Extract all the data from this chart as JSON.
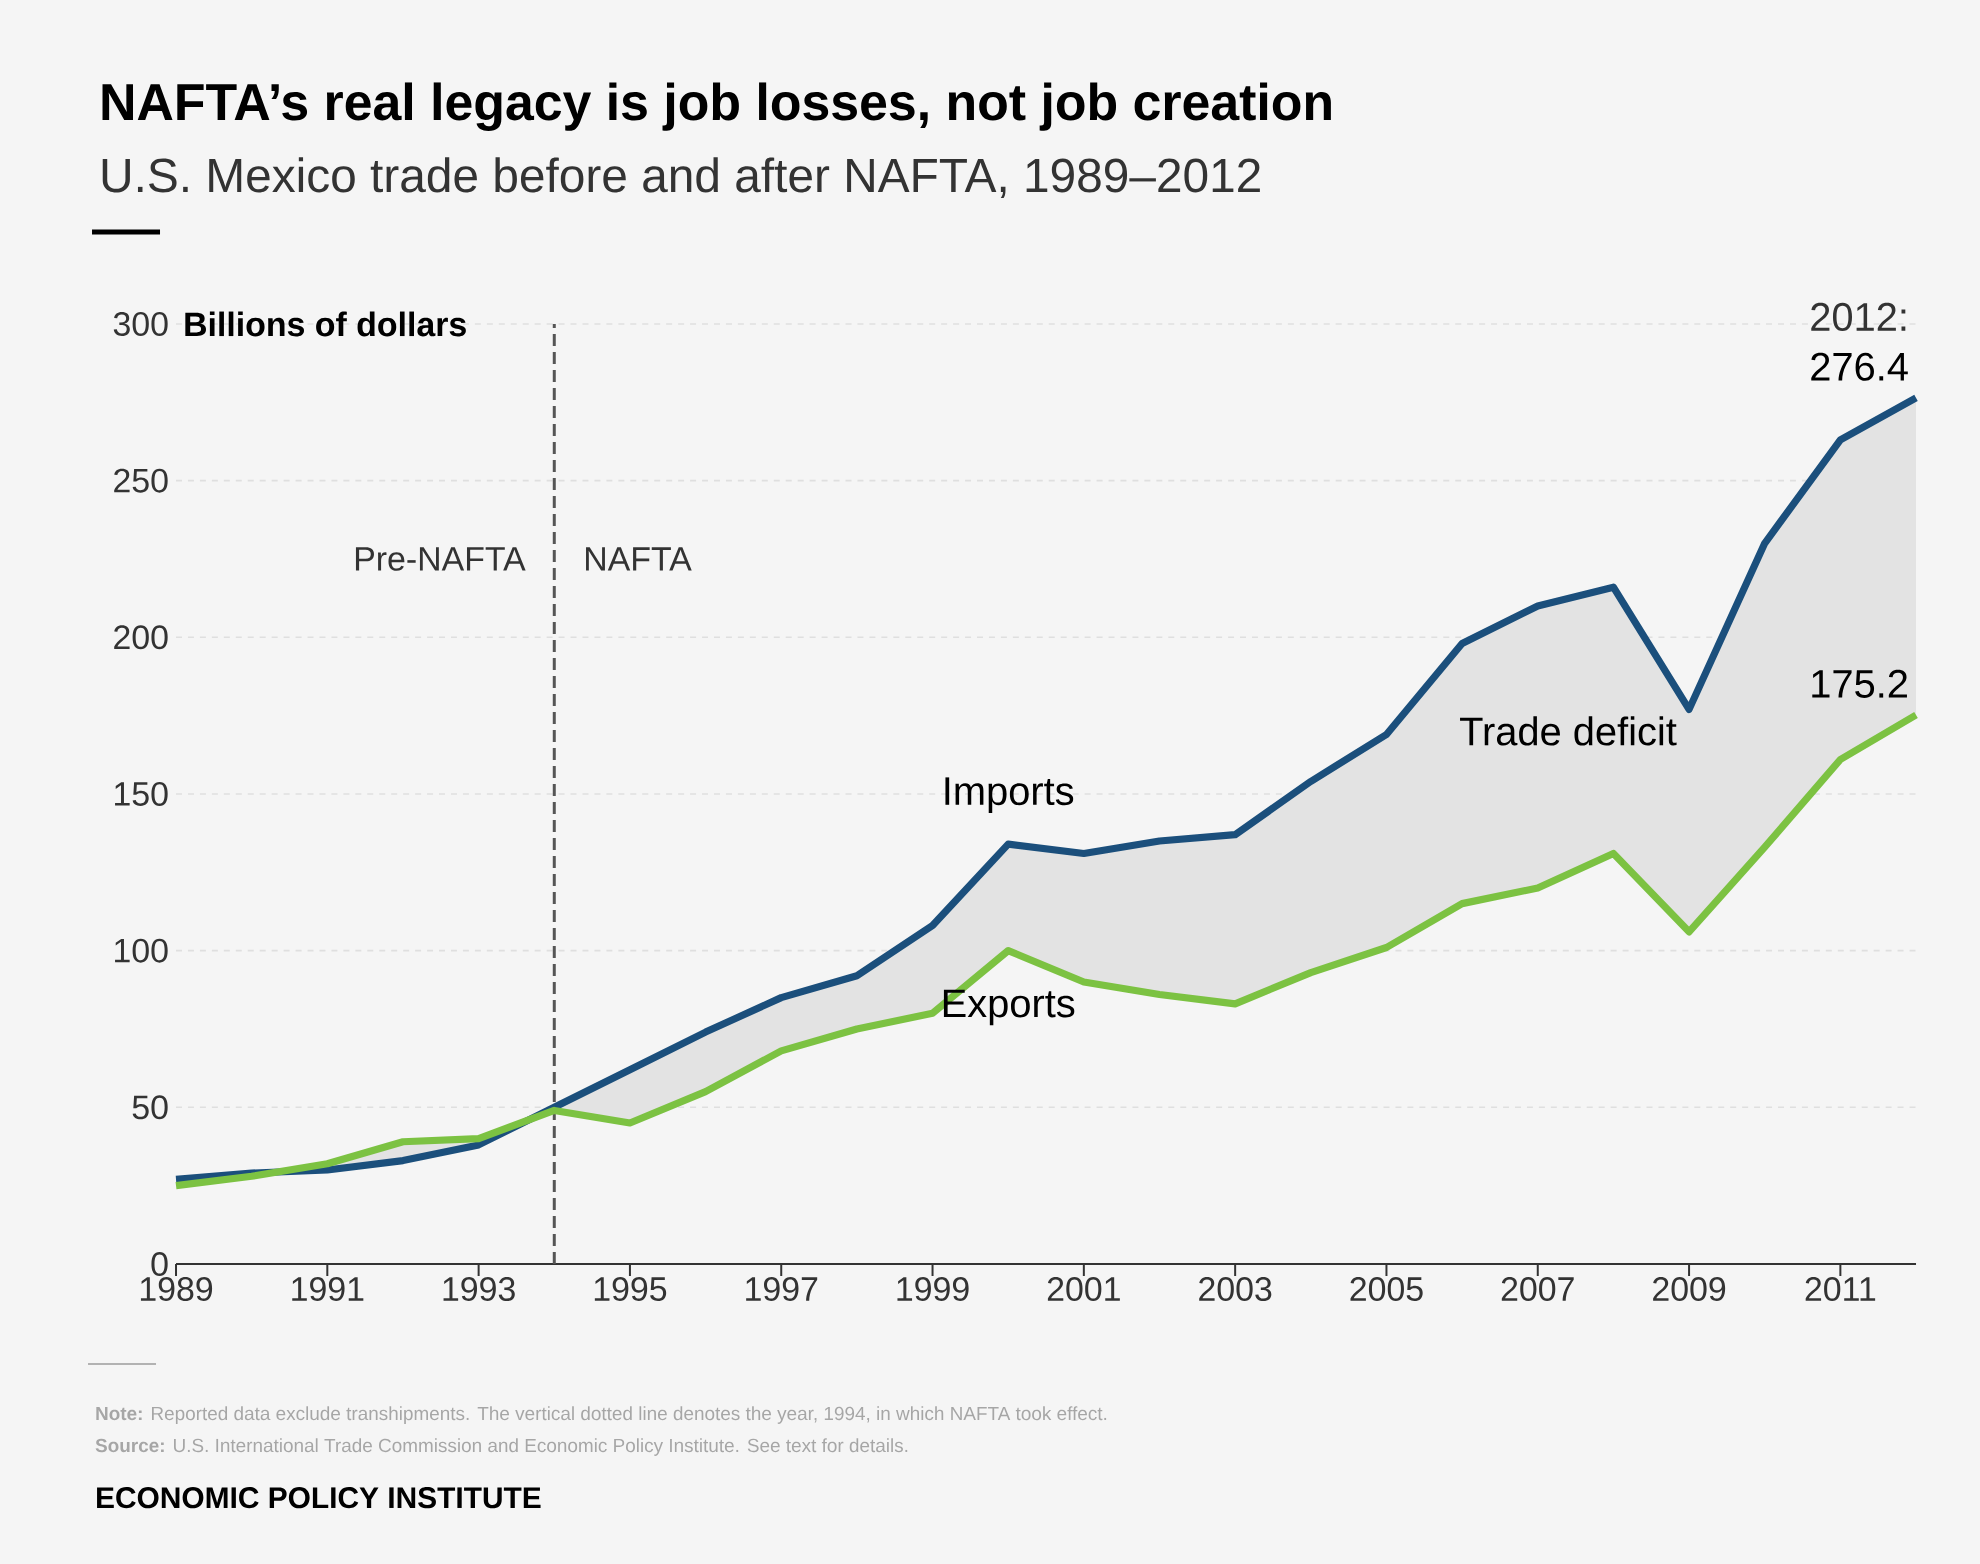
{
  "chart_data": {
    "type": "line",
    "title": "NAFTA’s real legacy is job losses, not job creation",
    "subtitle": "U.S. Mexico trade before and after NAFTA, 1989–2012",
    "ylabel": "Billions of dollars",
    "x": [
      1989,
      1990,
      1991,
      1992,
      1993,
      1994,
      1995,
      1996,
      1997,
      1998,
      1999,
      2000,
      2001,
      2002,
      2003,
      2004,
      2005,
      2006,
      2007,
      2008,
      2009,
      2010,
      2011,
      2012
    ],
    "series": [
      {
        "name": "Imports",
        "color": "#1b4f7c",
        "values": [
          27,
          29,
          30,
          33,
          38,
          50,
          62,
          74,
          85,
          92,
          108,
          134,
          131,
          135,
          137,
          154,
          169,
          198,
          210,
          216,
          177,
          230,
          263,
          276.4
        ],
        "value_labels": [
          null,
          null,
          null,
          null,
          null,
          null,
          null,
          null,
          null,
          null,
          null,
          null,
          null,
          null,
          null,
          null,
          null,
          null,
          null,
          null,
          null,
          null,
          null,
          "276.4"
        ],
        "lower": [
          25,
          28,
          32,
          39,
          40,
          49,
          45,
          55,
          68,
          75,
          80,
          100,
          90,
          86,
          83,
          93,
          101,
          115,
          120,
          131,
          106,
          133,
          161,
          175.2
        ],
        "upper": [
          27,
          29,
          30,
          33,
          38,
          50,
          62,
          74,
          85,
          92,
          108,
          134,
          131,
          135,
          137,
          154,
          169,
          198,
          210,
          216,
          177,
          230,
          263,
          276.4
        ]
      },
      {
        "name": "Exports",
        "color": "#7cc242",
        "values": [
          25,
          28,
          32,
          39,
          40,
          49,
          45,
          55,
          68,
          75,
          80,
          100,
          90,
          86,
          83,
          93,
          101,
          115,
          120,
          131,
          106,
          133,
          161,
          175.2
        ],
        "value_labels": [
          null,
          null,
          null,
          null,
          null,
          null,
          null,
          null,
          null,
          null,
          null,
          null,
          null,
          null,
          null,
          null,
          null,
          null,
          null,
          null,
          null,
          null,
          null,
          "175.2"
        ]
      }
    ],
    "xlim": [
      1989,
      2012
    ],
    "ylim": [
      0,
      300
    ],
    "xticks": [
      1989,
      1991,
      1993,
      1995,
      1997,
      1999,
      2001,
      2003,
      2005,
      2007,
      2009,
      2011
    ],
    "yticks": [
      0,
      50,
      100,
      150,
      200,
      250,
      300
    ],
    "grid": "y",
    "line_style": "solid",
    "ref_lines": [
      {
        "axis": "x",
        "value": 1994,
        "label": null,
        "color": "#555555",
        "line_style": "dashed"
      }
    ],
    "annotations": [
      "Pre-NAFTA",
      "NAFTA",
      "Trade deficit",
      "2012:",
      "**Note:** Reported data exclude transhipments. The vertical dotted line denotes the year, 1994, in which NAFTA took effect.",
      "**Source:** U.S. International Trade Commission and Economic Policy Institute. See text for details.",
      "ECONOMIC POLICY INSTITUTE"
    ]
  }
}
